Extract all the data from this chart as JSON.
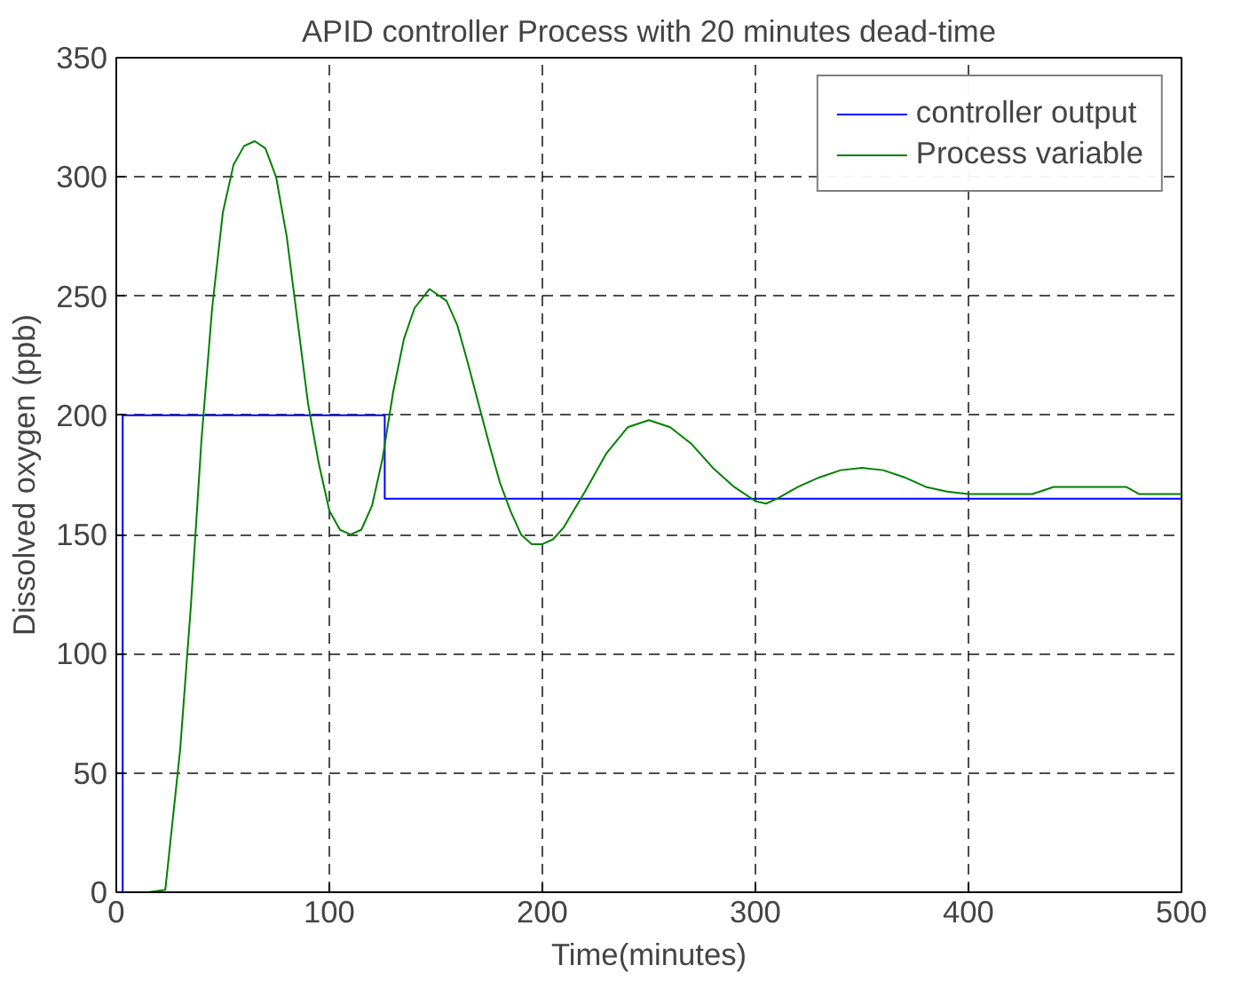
{
  "chart_data": {
    "type": "line",
    "title": "APID controller Process with 20 minutes dead-time",
    "xlabel": "Time(minutes)",
    "ylabel": "Dissolved oxygen (ppb)",
    "xlim": [
      0,
      500
    ],
    "ylim": [
      0,
      350
    ],
    "xticks": [
      0,
      100,
      200,
      300,
      400,
      500
    ],
    "yticks": [
      0,
      50,
      100,
      150,
      200,
      250,
      300,
      350
    ],
    "grid": true,
    "legend": "top right",
    "marker": "none",
    "line_style": "solid",
    "series": [
      {
        "name": "controller output",
        "color": "#0000ff",
        "type": "step",
        "x": [
          0,
          3,
          3,
          126,
          126,
          500
        ],
        "values": [
          0,
          0,
          200,
          200,
          165,
          165
        ]
      },
      {
        "name": "Process variable",
        "color": "#008000",
        "x": [
          0,
          15,
          23,
          30,
          35,
          40,
          45,
          50,
          55,
          60,
          65,
          70,
          75,
          80,
          85,
          90,
          95,
          100,
          105,
          110,
          115,
          120,
          125,
          130,
          135,
          140,
          147,
          155,
          160,
          165,
          170,
          175,
          180,
          185,
          190,
          195,
          200,
          205,
          210,
          220,
          230,
          240,
          250,
          260,
          270,
          280,
          290,
          300,
          305,
          310,
          320,
          330,
          340,
          350,
          360,
          370,
          380,
          390,
          400,
          430,
          440,
          474,
          480,
          500
        ],
        "values": [
          0,
          0,
          1,
          60,
          120,
          190,
          245,
          285,
          305,
          313,
          315,
          312,
          300,
          275,
          240,
          205,
          180,
          160,
          152,
          150,
          152,
          162,
          182,
          210,
          232,
          245,
          253,
          248,
          238,
          222,
          205,
          188,
          172,
          160,
          150,
          146,
          146,
          148,
          153,
          168,
          184,
          195,
          198,
          195,
          188,
          178,
          170,
          164,
          163,
          165,
          170,
          174,
          177,
          178,
          177,
          174,
          170,
          168,
          167,
          167,
          170,
          170,
          167,
          167
        ]
      }
    ]
  }
}
